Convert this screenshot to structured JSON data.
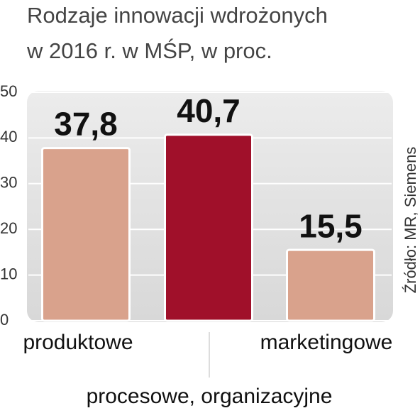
{
  "chart_data": {
    "type": "bar",
    "title": [
      "Rodzaje innowacji wdrożonych",
      "w 2016 r. w MŚP, w proc."
    ],
    "categories": [
      "produktowe",
      "procesowe, organizacyjne",
      "marketingowe"
    ],
    "values": [
      37.8,
      40.7,
      15.5
    ],
    "value_labels": [
      "37,8",
      "40,7",
      "15,5"
    ],
    "colors": [
      "#d9a28c",
      "#a0102a",
      "#d9a28c"
    ],
    "ylim": [
      0,
      50
    ],
    "yticks": [
      0,
      10,
      20,
      30,
      40,
      50
    ],
    "grid": true,
    "source": "Źródło: MR, Siemens"
  }
}
